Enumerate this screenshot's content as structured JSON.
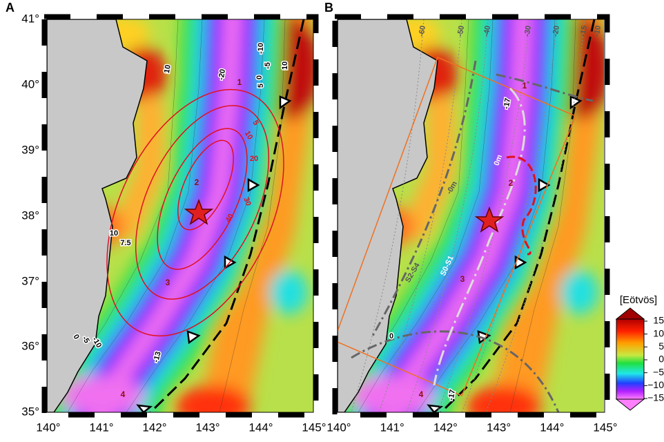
{
  "panels": [
    {
      "letter": "A",
      "contour_labels": [
        "10",
        "-20",
        "-10",
        "-5",
        "0",
        "5",
        "10",
        "5",
        "10",
        "20",
        "30",
        "40",
        "10",
        "7.5",
        "0",
        "-5",
        "-10",
        "-13"
      ],
      "region_labels": [
        "1",
        "2",
        "3",
        "4"
      ]
    },
    {
      "letter": "B",
      "contour_labels": [
        "-60",
        "-50",
        "-40",
        "-30",
        "-20",
        "-15",
        "-10",
        "-17",
        "0m",
        "-0m",
        "S2-S4",
        "S0-S1",
        "0",
        "-17"
      ],
      "region_labels": [
        "1",
        "2",
        "3",
        "4"
      ]
    }
  ],
  "axes": {
    "lat_labels": [
      "41°",
      "40°",
      "39°",
      "38°",
      "37°",
      "36°",
      "35°"
    ],
    "lon_labels": [
      "140°",
      "141°",
      "142°",
      "143°",
      "144°",
      "145°"
    ]
  },
  "colorbar": {
    "title": "[Eötvös]",
    "ticks": [
      "15",
      "10",
      "5",
      "0",
      "−5",
      "−10",
      "−15"
    ]
  }
}
